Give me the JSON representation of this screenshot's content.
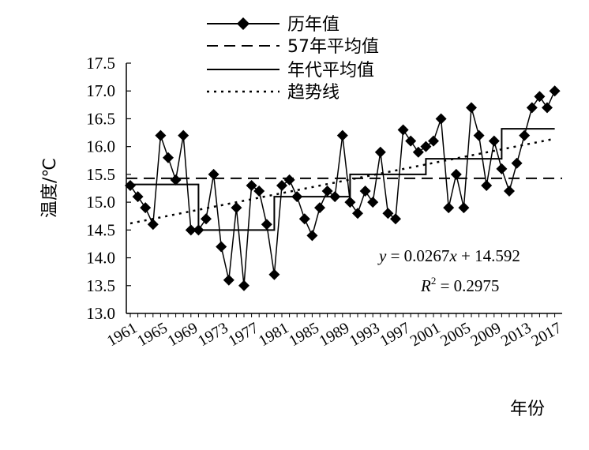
{
  "chart_data": {
    "type": "line",
    "xlabel": "年份",
    "ylabel": "温度/℃",
    "ylim": [
      13.0,
      17.5
    ],
    "yticks": [
      "13.0",
      "13.5",
      "14.0",
      "14.5",
      "15.0",
      "15.5",
      "16.0",
      "16.5",
      "17.0",
      "17.5"
    ],
    "xlim": [
      1961,
      2018
    ],
    "xticks": [
      "1961",
      "1965",
      "1969",
      "1973",
      "1977",
      "1981",
      "1985",
      "1989",
      "1993",
      "1997",
      "2001",
      "2005",
      "2009",
      "2013",
      "2017"
    ],
    "grid": false,
    "legend_position": "top-center",
    "legend": [
      "历年值",
      "57年平均值",
      "年代平均值",
      "趋势线"
    ],
    "x": [
      1961,
      1962,
      1963,
      1964,
      1965,
      1966,
      1967,
      1968,
      1969,
      1970,
      1971,
      1972,
      1973,
      1974,
      1975,
      1976,
      1977,
      1978,
      1979,
      1980,
      1981,
      1982,
      1983,
      1984,
      1985,
      1986,
      1987,
      1988,
      1989,
      1990,
      1991,
      1992,
      1993,
      1994,
      1995,
      1996,
      1997,
      1998,
      1999,
      2000,
      2001,
      2002,
      2003,
      2004,
      2005,
      2006,
      2007,
      2008,
      2009,
      2010,
      2011,
      2012,
      2013,
      2014,
      2015,
      2016,
      2017
    ],
    "series": [
      {
        "name": "历年值",
        "style": "line-diamond",
        "values": [
          15.3,
          15.1,
          14.9,
          14.6,
          16.2,
          15.8,
          15.4,
          16.2,
          14.5,
          14.5,
          14.7,
          15.5,
          14.2,
          13.6,
          14.9,
          13.5,
          15.3,
          15.2,
          14.6,
          13.7,
          15.3,
          15.4,
          15.1,
          14.7,
          14.4,
          14.9,
          15.2,
          15.1,
          16.2,
          15.0,
          14.8,
          15.2,
          15.0,
          15.9,
          14.8,
          14.7,
          16.3,
          16.1,
          15.9,
          16.0,
          16.1,
          16.5,
          14.9,
          15.5,
          14.9,
          16.7,
          16.2,
          15.3,
          16.1,
          15.6,
          15.2,
          15.7,
          16.2,
          16.7,
          16.9,
          16.7,
          17.0
        ]
      },
      {
        "name": "57年平均值",
        "style": "dashed",
        "value": 15.43
      },
      {
        "name": "年代平均值",
        "style": "step",
        "segments": [
          {
            "x0": 1961,
            "x1": 1970,
            "value": 15.32
          },
          {
            "x0": 1970,
            "x1": 1980,
            "value": 14.5
          },
          {
            "x0": 1980,
            "x1": 1990,
            "value": 15.1
          },
          {
            "x0": 1990,
            "x1": 2000,
            "value": 15.5
          },
          {
            "x0": 2000,
            "x1": 2010,
            "value": 15.78
          },
          {
            "x0": 2010,
            "x1": 2017,
            "value": 16.32
          }
        ]
      },
      {
        "name": "趋势线",
        "style": "dotted",
        "slope": 0.0267,
        "intercept": 14.592
      }
    ],
    "annotations": {
      "equation_y": "y",
      "equation_rest": " = 0.0267",
      "equation_x": "x",
      "equation_tail": " + 14.592",
      "r2_R": "R",
      "r2_sup": "2",
      "r2_tail": " = 0.2975"
    }
  }
}
